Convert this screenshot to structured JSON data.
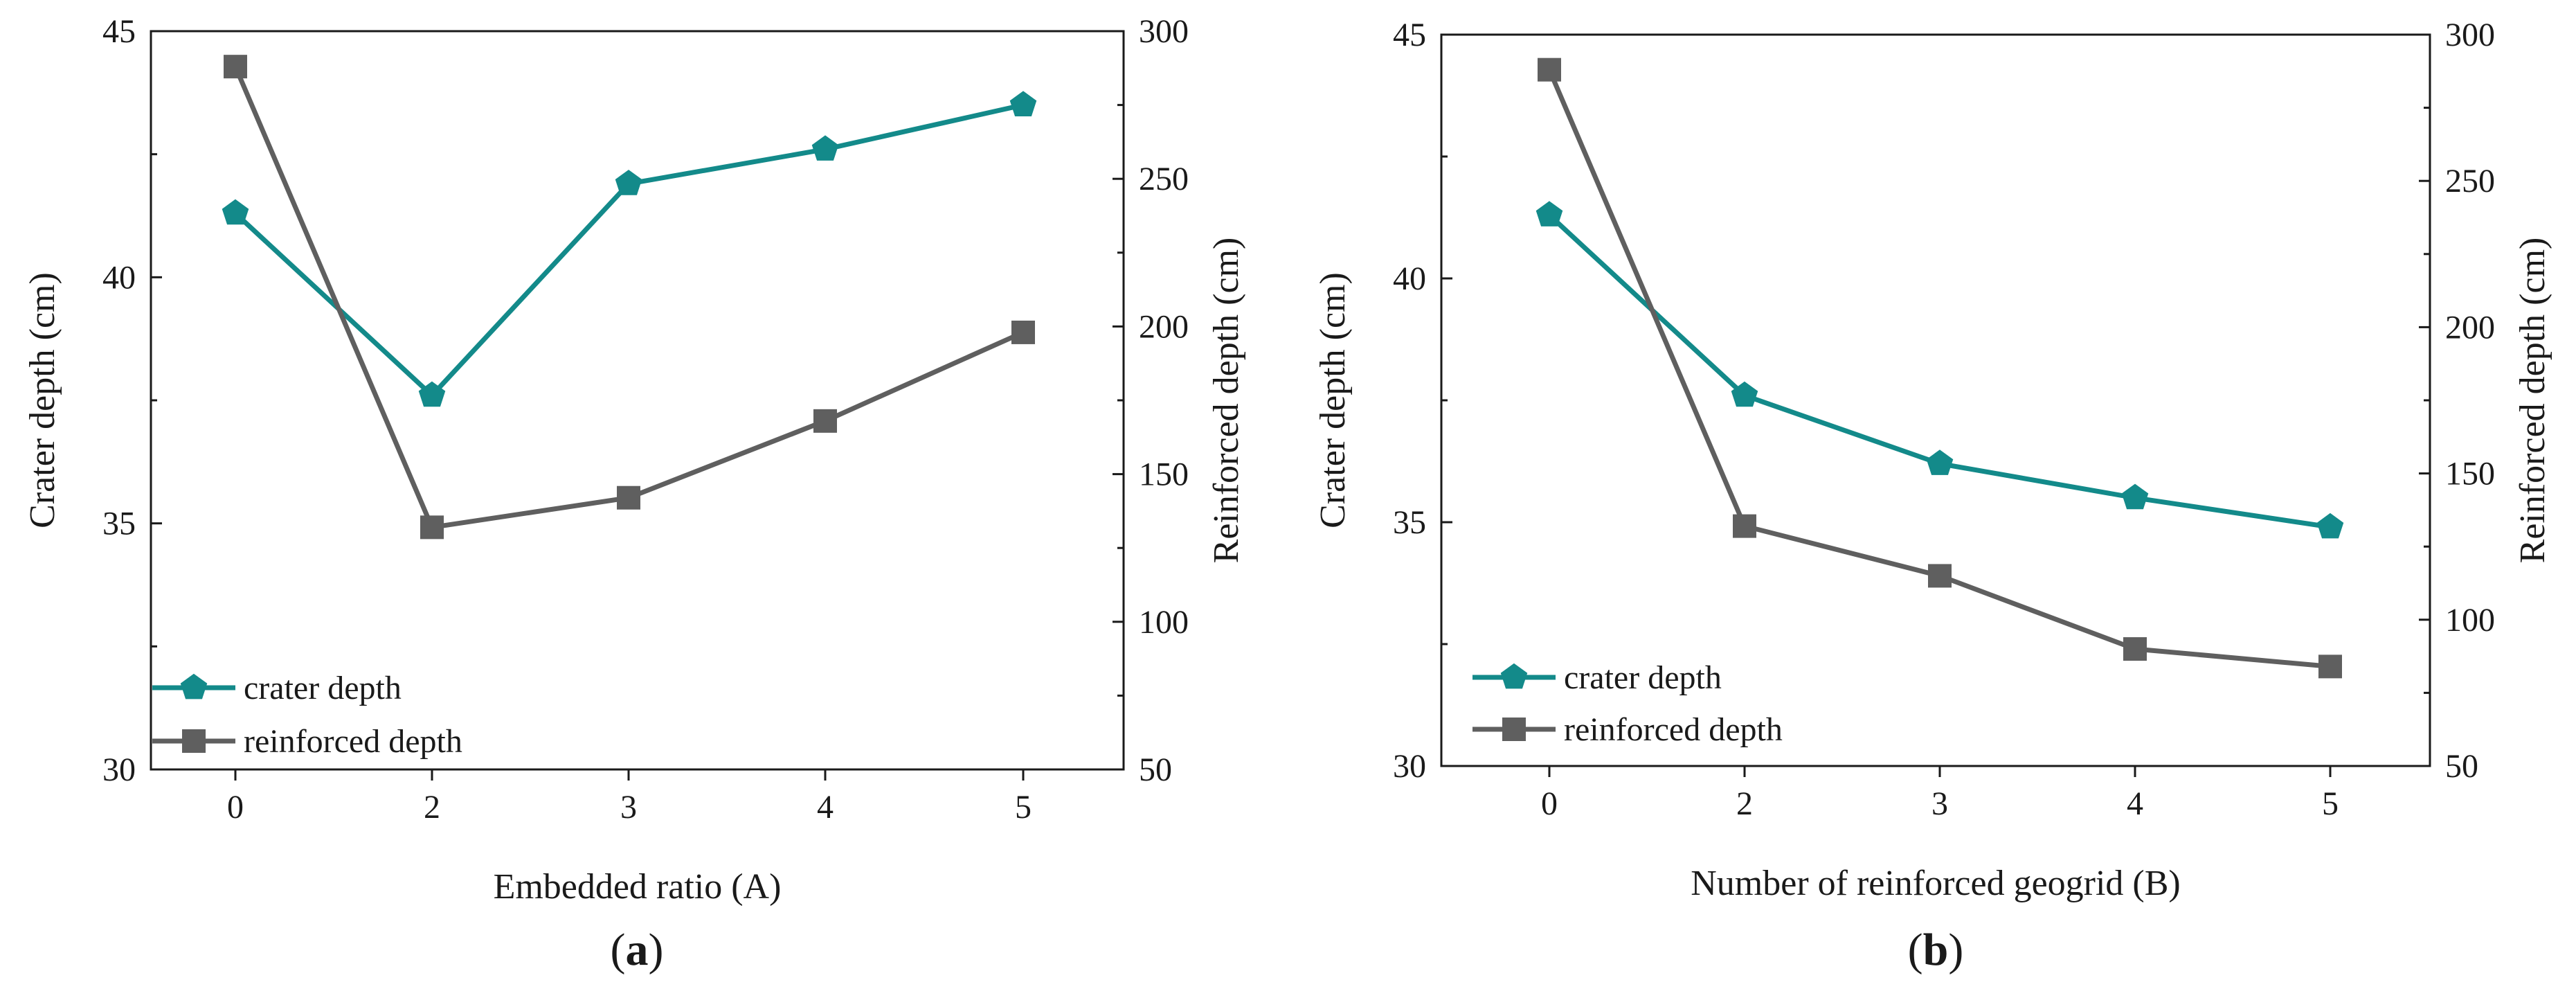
{
  "chart_data": [
    {
      "type": "line",
      "panel_label": "a",
      "categories": [
        "0",
        "2",
        "3",
        "4",
        "5"
      ],
      "xlabel": "Embedded ratio (A)",
      "ylabel_left": "Crater depth (cm)",
      "ylabel_right": "Reinforced depth (cm)",
      "ylim_left": [
        30,
        45
      ],
      "yticks_left": [
        30,
        35,
        40,
        45
      ],
      "ylim_right": [
        50,
        300
      ],
      "yticks_right": [
        50,
        100,
        150,
        200,
        250,
        300
      ],
      "grid": false,
      "legend_position": "bottom-left",
      "series": [
        {
          "name": "crater depth",
          "axis": "left",
          "marker": "pentagon",
          "color": "#138a8a",
          "values": [
            41.3,
            37.6,
            41.9,
            42.6,
            43.5
          ]
        },
        {
          "name": "reinforced depth",
          "axis": "right",
          "marker": "square",
          "color": "#5f5f5f",
          "values": [
            288,
            132,
            142,
            168,
            198
          ]
        }
      ]
    },
    {
      "type": "line",
      "panel_label": "b",
      "categories": [
        "0",
        "2",
        "3",
        "4",
        "5"
      ],
      "xlabel": "Number of reinforced geogrid (B)",
      "ylabel_left": "Crater depth (cm)",
      "ylabel_right": "Reinforced depth (cm)",
      "ylim_left": [
        30,
        45
      ],
      "yticks_left": [
        30,
        35,
        40,
        45
      ],
      "ylim_right": [
        50,
        300
      ],
      "yticks_right": [
        50,
        100,
        150,
        200,
        250,
        300
      ],
      "grid": false,
      "legend_position": "bottom-left",
      "series": [
        {
          "name": "crater depth",
          "axis": "left",
          "marker": "pentagon",
          "color": "#138a8a",
          "values": [
            41.3,
            37.6,
            36.2,
            35.5,
            34.9
          ]
        },
        {
          "name": "reinforced depth",
          "axis": "right",
          "marker": "square",
          "color": "#5f5f5f",
          "values": [
            288,
            132,
            115,
            90,
            84
          ]
        }
      ]
    }
  ]
}
